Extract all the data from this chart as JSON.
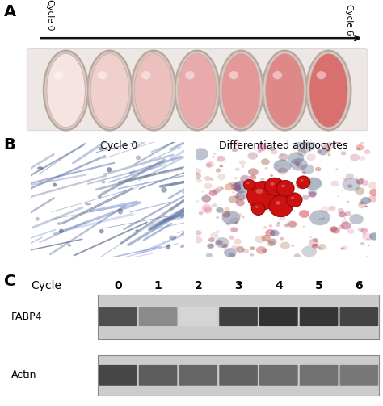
{
  "panel_label_fontsize": 14,
  "panel_label_fontweight": "bold",
  "panel_A": {
    "arrow_label_left": "Cycle 0",
    "arrow_label_right": "Cycle 6",
    "num_dishes": 7,
    "dish_fill_colors": [
      "#f5e4e2",
      "#f0d0cc",
      "#ecc0bc",
      "#e8aaaa",
      "#e49898",
      "#df8888",
      "#d87070"
    ],
    "dish_border_color": "#c0a0a0",
    "tray_color": "#ede8e6",
    "arrow_color": "#111111"
  },
  "panel_B": {
    "label_left": "Cycle 0",
    "label_right": "Differentiated adipocytes",
    "label_fontsize": 9,
    "left_bg": "#8aaac8",
    "right_bg": "#9aabcc"
  },
  "panel_C": {
    "cycle_labels": [
      "0",
      "1",
      "2",
      "3",
      "4",
      "5",
      "6"
    ],
    "cycle_label_fontsize": 10,
    "row_label_fontsize": 9,
    "fabp4_intensities": [
      0.75,
      0.5,
      0.18,
      0.82,
      0.88,
      0.86,
      0.8
    ],
    "actin_intensities": [
      0.82,
      0.72,
      0.68,
      0.7,
      0.65,
      0.63,
      0.6
    ],
    "gel_bg_light": "#d8d8d8",
    "gel_bg_dark": "#b8b8b8"
  },
  "bg_color": "#ffffff",
  "fig_width": 4.74,
  "fig_height": 5.03
}
